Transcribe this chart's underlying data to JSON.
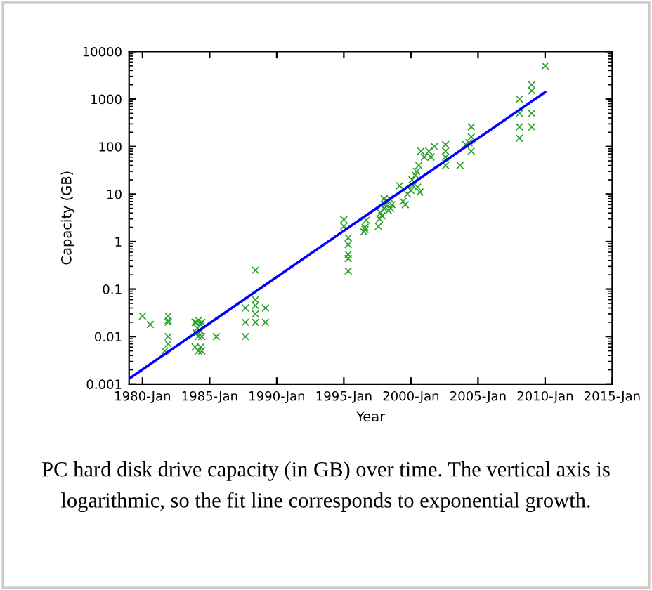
{
  "chart_data": {
    "type": "scatter",
    "xlabel": "Year",
    "ylabel": "Capacity (GB)",
    "log": "y",
    "grid": false,
    "xlim": [
      "1979-01",
      "2015-01"
    ],
    "xticks": [
      {
        "value": "1980-01",
        "label": "1980-Jan"
      },
      {
        "value": "1985-01",
        "label": "1985-Jan"
      },
      {
        "value": "1990-01",
        "label": "1990-Jan"
      },
      {
        "value": "1995-01",
        "label": "1995-Jan"
      },
      {
        "value": "2000-01",
        "label": "2000-Jan"
      },
      {
        "value": "2005-01",
        "label": "2005-Jan"
      },
      {
        "value": "2010-01",
        "label": "2010-Jan"
      },
      {
        "value": "2015-01",
        "label": "2015-Jan"
      }
    ],
    "ylim": [
      0.001,
      10000
    ],
    "yticks": [
      0.001,
      0.01,
      0.1,
      1,
      10,
      100,
      1000,
      10000
    ],
    "series": [
      {
        "color": "#2ca02c",
        "marker": "cross",
        "x": [
          "1980-01",
          "1980-08",
          "1981-12",
          "1981-12",
          "1981-12",
          "1981-12",
          "1981-12",
          "1981-09",
          "1983-12",
          "1984-01",
          "1984-02",
          "1984-03",
          "1984-05",
          "1984-06",
          "1984-01",
          "1984-03",
          "1984-06",
          "1984-05",
          "1983-12",
          "1984-03",
          "1984-06",
          "1984-05",
          "1985-07",
          "1987-09",
          "1987-09",
          "1987-09",
          "1988-06",
          "1988-06",
          "1988-06",
          "1988-06",
          "1988-06",
          "1989-03",
          "1989-03",
          "1995-01",
          "1995-01",
          "1995-05",
          "1995-05",
          "1995-05",
          "1995-05",
          "1995-05",
          "1996-07",
          "1996-08",
          "1996-09",
          "1996-08",
          "1997-08",
          "1997-09",
          "1997-10",
          "1998-01",
          "1998-02",
          "1998-03",
          "1997-11",
          "1998-05",
          "1998-07",
          "1998-06",
          "1998-08",
          "1998-01",
          "1999-03",
          "1999-06",
          "1999-08",
          "1999-10",
          "2000-01",
          "2000-03",
          "2000-02",
          "2000-05",
          "2000-06",
          "2000-08",
          "2000-07",
          "2000-09",
          "2000-10",
          "2001-01",
          "2001-05",
          "2001-07",
          "2001-10",
          "2002-08",
          "2002-08",
          "2002-08",
          "2002-08",
          "2003-09",
          "2004-02",
          "2004-05",
          "2004-07",
          "2004-07",
          "2004-07",
          "2008-02",
          "2008-02",
          "2008-02",
          "2008-02",
          "2009-01",
          "2009-01",
          "2009-01",
          "2009-01",
          "2010-01"
        ],
        "values": [
          0.027,
          0.018,
          0.027,
          0.022,
          0.02,
          0.01,
          0.007,
          0.005,
          0.02,
          0.02,
          0.015,
          0.022,
          0.018,
          0.02,
          0.012,
          0.01,
          0.01,
          0.013,
          0.006,
          0.005,
          0.005,
          0.006,
          0.01,
          0.04,
          0.02,
          0.01,
          0.25,
          0.06,
          0.045,
          0.03,
          0.02,
          0.04,
          0.02,
          2.9,
          2.1,
          1.2,
          0.87,
          0.54,
          0.44,
          0.24,
          1.6,
          2,
          2.8,
          1.8,
          2.1,
          3,
          4,
          5,
          6,
          7,
          3.5,
          4.5,
          5,
          8,
          6,
          8,
          15,
          7,
          6,
          10,
          12,
          15,
          20,
          25,
          30,
          40,
          14,
          11,
          80,
          60,
          80,
          60,
          100,
          110,
          80,
          60,
          40,
          40,
          110,
          120,
          160,
          260,
          80,
          1000,
          500,
          260,
          150,
          2000,
          1500,
          500,
          260,
          5000
        ]
      },
      {
        "type": "line",
        "color": "#0000ff",
        "marker": "none",
        "line_style": "solid",
        "x": [
          "1979-01",
          "2010-01"
        ],
        "values": [
          0.0013,
          1400
        ]
      }
    ],
    "annotations": [
      "PC hard disk drive capacity (in GB) over time. The vertical axis is logarithmic, so the fit line corresponds to exponential growth."
    ]
  }
}
